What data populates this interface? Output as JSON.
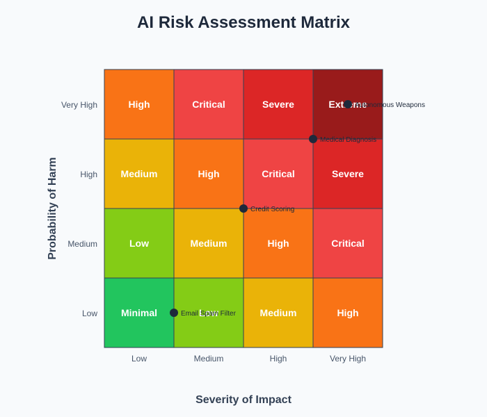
{
  "chart_data": {
    "type": "heatmap",
    "title": "AI Risk Assessment Matrix",
    "xlabel": "Severity of Impact",
    "ylabel": "Probability of Harm",
    "x_categories": [
      "Low",
      "Medium",
      "High",
      "Very High"
    ],
    "y_categories": [
      "Low",
      "Medium",
      "High",
      "Very High"
    ],
    "levels": {
      "Minimal": "#22c55e",
      "Low": "#84cc16",
      "Medium": "#eab308",
      "High": "#f97316",
      "Critical": "#ef4444",
      "Severe": "#dc2626",
      "Extreme": "#991b1b"
    },
    "cells": [
      [
        "Minimal",
        "Low",
        "Medium",
        "High"
      ],
      [
        "Low",
        "Medium",
        "High",
        "Critical"
      ],
      [
        "Medium",
        "High",
        "Critical",
        "Severe"
      ],
      [
        "High",
        "Critical",
        "Severe",
        "Extreme"
      ]
    ],
    "points": [
      {
        "label": "Autonomous Weapons",
        "x": 3.5,
        "y": 3.5
      },
      {
        "label": "Medical Diagnosis",
        "x": 3.0,
        "y": 3.0
      },
      {
        "label": "Credit Scoring",
        "x": 2.0,
        "y": 2.0
      },
      {
        "label": "Email Spam Filter",
        "x": 1.0,
        "y": 0.5
      }
    ],
    "x_range": [
      0,
      4
    ],
    "y_range": [
      0,
      4
    ],
    "grid": true,
    "legend": "none"
  }
}
